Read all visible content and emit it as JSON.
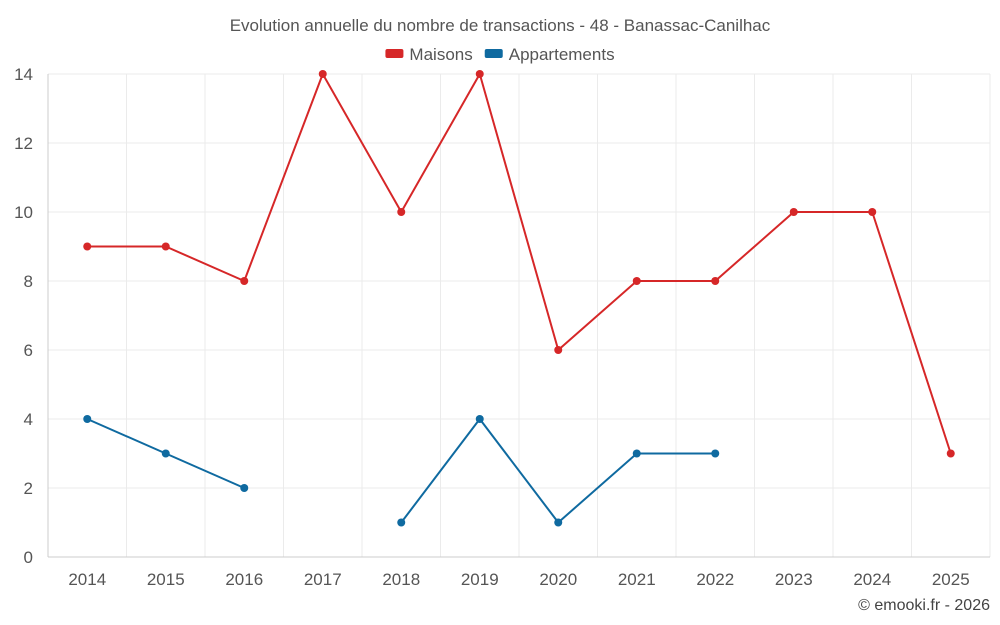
{
  "chart_data": {
    "type": "line",
    "title": "Evolution annuelle du nombre de transactions - 48 - Banassac-Canilhac",
    "categories": [
      "2014",
      "2015",
      "2016",
      "2017",
      "2018",
      "2019",
      "2020",
      "2021",
      "2022",
      "2023",
      "2024",
      "2025"
    ],
    "series": [
      {
        "name": "Maisons",
        "color": "#d62728",
        "values": [
          9,
          9,
          8,
          14,
          10,
          14,
          6,
          8,
          8,
          10,
          10,
          3
        ]
      },
      {
        "name": "Appartements",
        "color": "#0f6aa0",
        "values": [
          4,
          3,
          2,
          null,
          1,
          4,
          1,
          3,
          3,
          null,
          null,
          null
        ]
      }
    ],
    "ylim": [
      0,
      14
    ],
    "yticks": [
      0,
      2,
      4,
      6,
      8,
      10,
      12,
      14
    ],
    "xlabel": "",
    "ylabel": "",
    "legend_position": "top-center",
    "grid": true
  },
  "credit": "© emooki.fr - 2026"
}
